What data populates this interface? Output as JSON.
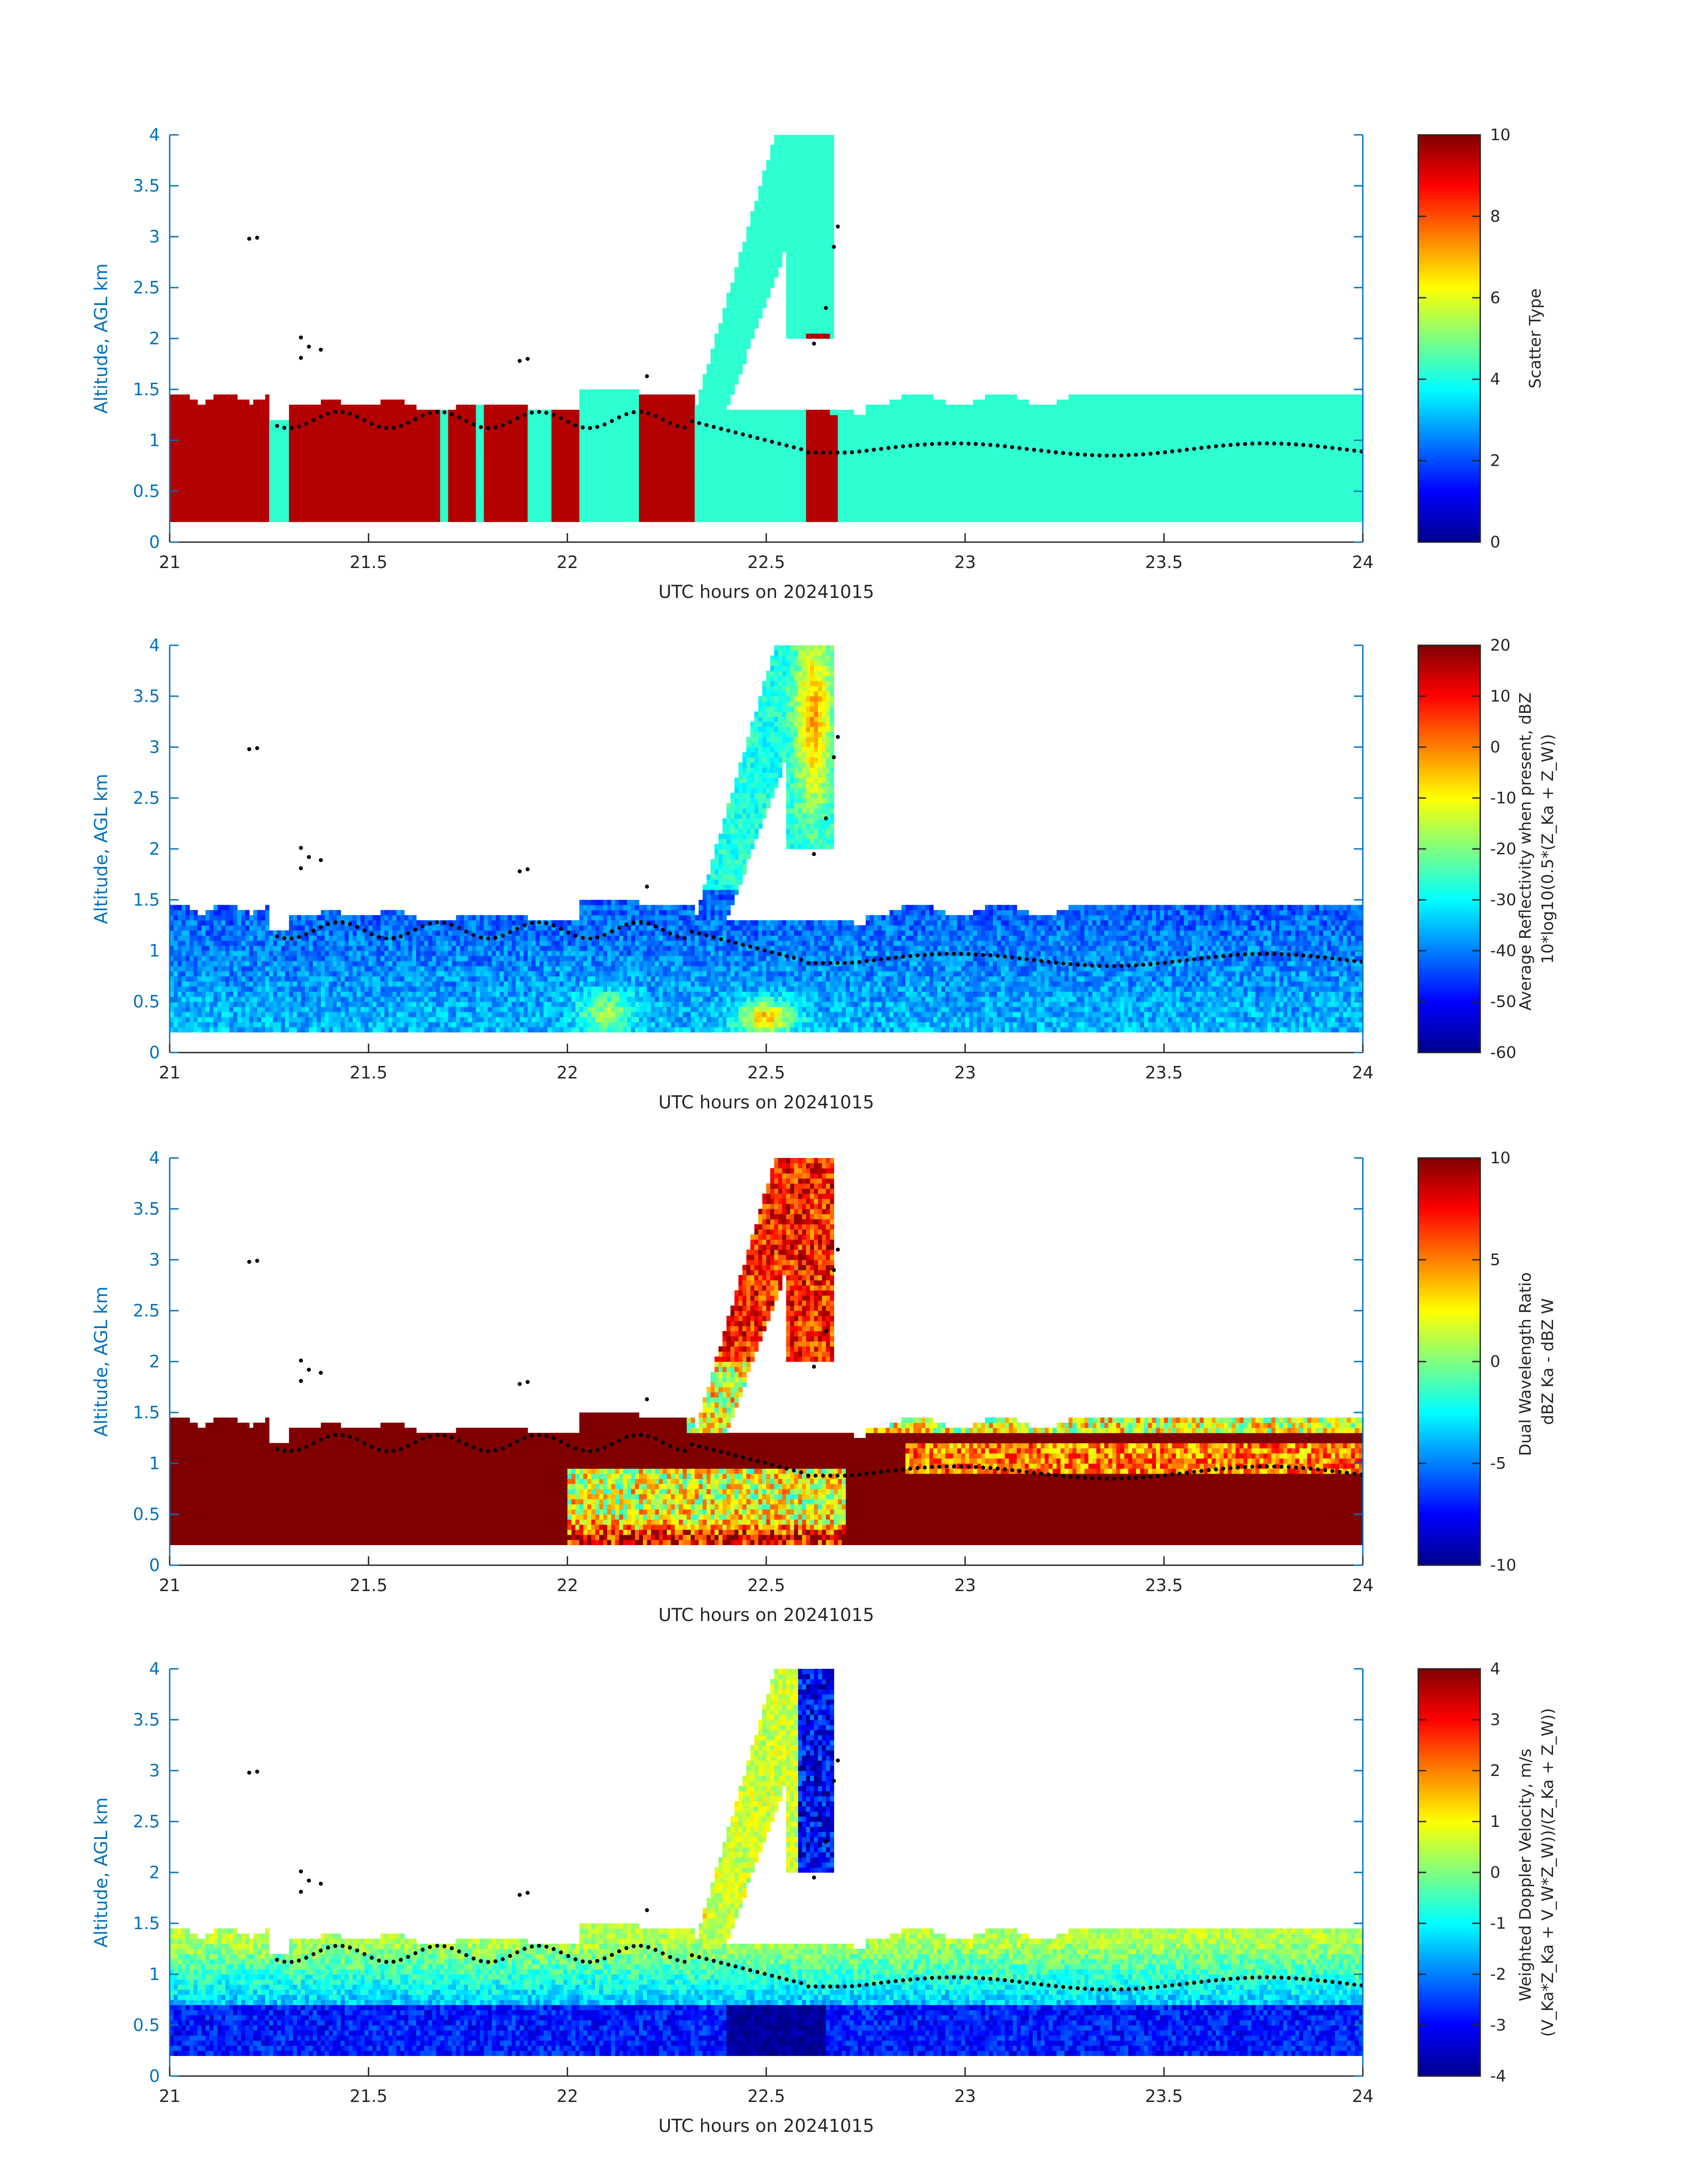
{
  "chart_data": [
    {
      "type": "heatmap",
      "title": "",
      "xlabel": "UTC hours on 20241015",
      "ylabel": "Altitude, AGL km",
      "xlim": [
        21,
        24
      ],
      "ylim": [
        0,
        4
      ],
      "xticks": [
        21,
        21.5,
        22,
        22.5,
        23,
        23.5,
        24
      ],
      "xtick_labels": [
        "21",
        "21.5",
        "22",
        "22.5",
        "23",
        "23.5",
        "24"
      ],
      "yticks": [
        0,
        0.5,
        1,
        1.5,
        2,
        2.5,
        3,
        3.5,
        4
      ],
      "ytick_labels": [
        "0",
        "0.5",
        "1",
        "1.5",
        "2",
        "2.5",
        "3",
        "3.5",
        "4"
      ],
      "colorbar": {
        "label_lines": [
          "Scatter Type"
        ],
        "ticks": [
          0,
          2,
          4,
          6,
          8,
          10
        ],
        "tick_labels": [
          "0",
          "2",
          "4",
          "6",
          "8",
          "10"
        ],
        "range": [
          0,
          10
        ],
        "colormap": "jet"
      },
      "field": "scatter_type",
      "overlay": "cloud base altitude (black dots)"
    },
    {
      "type": "heatmap",
      "title": "",
      "xlabel": "UTC hours on 20241015",
      "ylabel": "Altitude, AGL km",
      "xlim": [
        21,
        24
      ],
      "ylim": [
        0,
        4
      ],
      "xticks": [
        21,
        21.5,
        22,
        22.5,
        23,
        23.5,
        24
      ],
      "xtick_labels": [
        "21",
        "21.5",
        "22",
        "22.5",
        "23",
        "23.5",
        "24"
      ],
      "yticks": [
        0,
        0.5,
        1,
        1.5,
        2,
        2.5,
        3,
        3.5,
        4
      ],
      "ytick_labels": [
        "0",
        "0.5",
        "1",
        "1.5",
        "2",
        "2.5",
        "3",
        "3.5",
        "4"
      ],
      "colorbar": {
        "label_lines": [
          "Average Reflectivity when present, dBZ",
          "10*log10(0.5*(Z_Ka + Z_W))"
        ],
        "ticks": [
          -60,
          -50,
          -40,
          -30,
          -20,
          -10,
          0,
          10,
          20
        ],
        "tick_labels": [
          "-60",
          "-50",
          "-40",
          "-30",
          "-20",
          "-10",
          "0",
          "10",
          "20"
        ],
        "range": [
          -60,
          20
        ],
        "colormap": "jet"
      },
      "field": "reflectivity",
      "overlay": "cloud base altitude (black dots)"
    },
    {
      "type": "heatmap",
      "title": "",
      "xlabel": "UTC hours on 20241015",
      "ylabel": "Altitude, AGL km",
      "xlim": [
        21,
        24
      ],
      "ylim": [
        0,
        4
      ],
      "xticks": [
        21,
        21.5,
        22,
        22.5,
        23,
        23.5,
        24
      ],
      "xtick_labels": [
        "21",
        "21.5",
        "22",
        "22.5",
        "23",
        "23.5",
        "24"
      ],
      "yticks": [
        0,
        0.5,
        1,
        1.5,
        2,
        2.5,
        3,
        3.5,
        4
      ],
      "ytick_labels": [
        "0",
        "0.5",
        "1",
        "1.5",
        "2",
        "2.5",
        "3",
        "3.5",
        "4"
      ],
      "colorbar": {
        "label_lines": [
          "Dual Wavelength Ratio",
          "dBZ Ka - dBZ W"
        ],
        "ticks": [
          -10,
          -5,
          0,
          5,
          10
        ],
        "tick_labels": [
          "-10",
          "-5",
          "0",
          "5",
          "10"
        ],
        "range": [
          -10,
          10
        ],
        "colormap": "jet"
      },
      "field": "dwr",
      "overlay": "cloud base altitude (black dots)"
    },
    {
      "type": "heatmap",
      "title": "",
      "xlabel": "UTC hours on 20241015",
      "ylabel": "Altitude, AGL km",
      "xlim": [
        21,
        24
      ],
      "ylim": [
        0,
        4
      ],
      "xticks": [
        21,
        21.5,
        22,
        22.5,
        23,
        23.5,
        24
      ],
      "xtick_labels": [
        "21",
        "21.5",
        "22",
        "22.5",
        "23",
        "23.5",
        "24"
      ],
      "yticks": [
        0,
        0.5,
        1,
        1.5,
        2,
        2.5,
        3,
        3.5,
        4
      ],
      "ytick_labels": [
        "0",
        "0.5",
        "1",
        "1.5",
        "2",
        "2.5",
        "3",
        "3.5",
        "4"
      ],
      "colorbar": {
        "label_lines": [
          "Weighted Doppler Velocity, m/s",
          "(V_Ka*Z_Ka + V_W*Z_W))/(Z_Ka + Z_W))"
        ],
        "ticks": [
          -4,
          -3,
          -2,
          -1,
          0,
          1,
          2,
          3,
          4
        ],
        "tick_labels": [
          "-4",
          "-3",
          "-2",
          "-1",
          "0",
          "1",
          "2",
          "3",
          "4"
        ],
        "range": [
          -4,
          4
        ],
        "colormap": "jet"
      },
      "field": "velocity",
      "overlay": "cloud base altitude (black dots)"
    }
  ]
}
